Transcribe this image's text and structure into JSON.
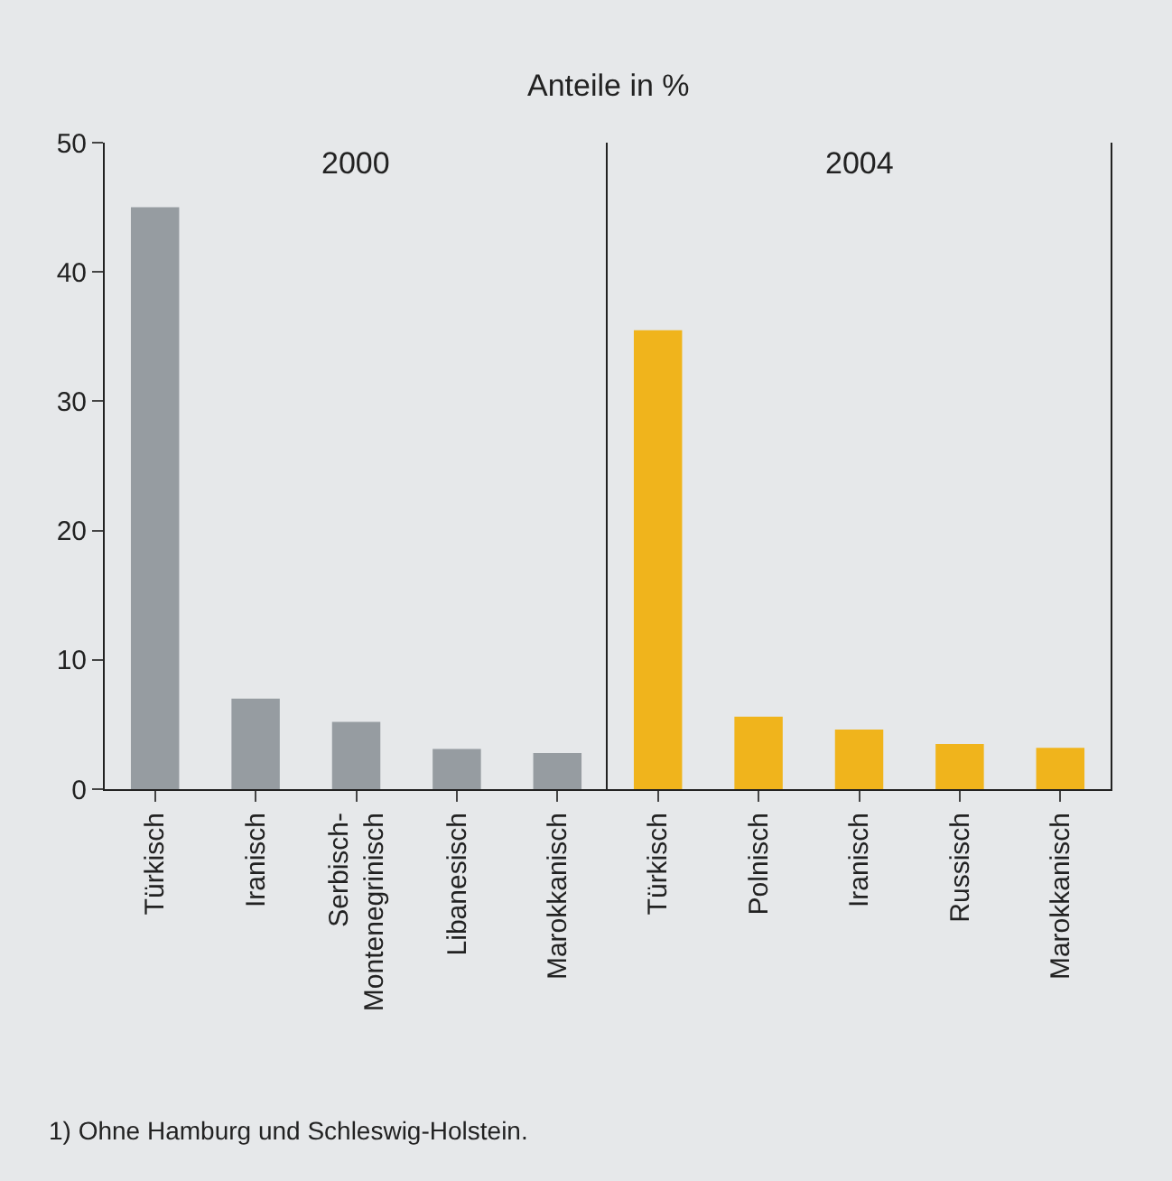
{
  "chart_data": [
    {
      "type": "bar",
      "title": "2000",
      "ylabel": "Anteile in %",
      "categories": [
        "Türkisch",
        "Iranisch",
        "Serbisch-\nMontenegrinisch",
        "Libanesisch",
        "Marokkanisch"
      ],
      "series": [
        {
          "color": "#969ca1",
          "values": [
            45.0,
            7.0,
            5.2,
            3.1,
            2.8
          ]
        }
      ],
      "ylim": [
        0,
        50
      ],
      "yticks": [
        0,
        10,
        20,
        30,
        40,
        50
      ],
      "grid": false,
      "annotations": [
        "1) Ohne Hamburg und Schleswig-Holstein."
      ]
    },
    {
      "type": "bar",
      "title": "2004",
      "categories": [
        "Türkisch",
        "Polnisch",
        "Iranisch",
        "Russisch",
        "Marokkanisch"
      ],
      "series": [
        {
          "color": "#f0b41c",
          "values": [
            35.5,
            5.6,
            4.6,
            3.5,
            3.2
          ]
        }
      ],
      "ylim": [
        0,
        50
      ],
      "yticks": [
        0,
        10,
        20,
        30,
        40,
        50
      ],
      "grid": false,
      "tick_labels": "x"
    }
  ]
}
